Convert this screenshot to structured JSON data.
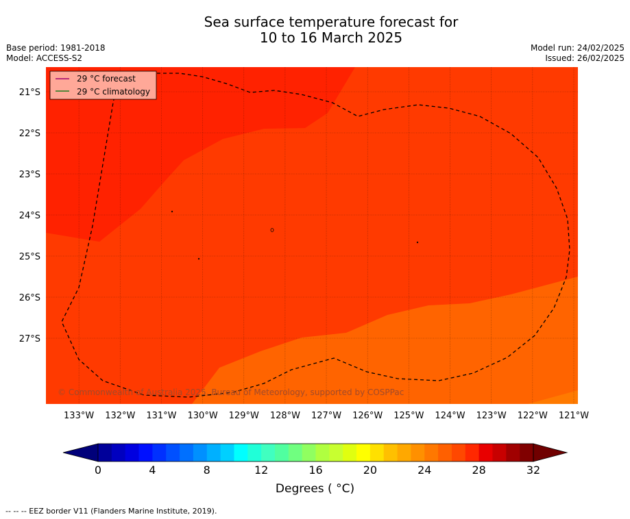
{
  "title_line1": "Sea surface temperature forecast for",
  "title_line2": "10 to 16 March 2025",
  "meta_left": [
    "Base period: 1981-2018",
    "Model: ACCESS-S2"
  ],
  "meta_right": [
    "Model run: 24/02/2025",
    "Issued: 26/02/2025"
  ],
  "legend": {
    "forecast_label": "29 °C  forecast",
    "climatology_label": "29 °C  climatology",
    "forecast_color": "#a0006c",
    "climatology_color": "#1a7a1a",
    "background": "#ffa898"
  },
  "map": {
    "lat_labels": [
      "21°S",
      "22°S",
      "23°S",
      "24°S",
      "25°S",
      "26°S",
      "27°S"
    ],
    "lon_labels": [
      "133°W",
      "132°W",
      "131°W",
      "130°W",
      "129°W",
      "128°W",
      "127°W",
      "126°W",
      "125°W",
      "124°W",
      "123°W",
      "122°W",
      "121°W"
    ],
    "lat_range": [
      -28.6,
      -20.4
    ],
    "lon_range": [
      -133.8,
      -120.9
    ],
    "region_colors": {
      "warm_29_30": "#ff2200",
      "mid_28_29": "#ff3a00",
      "cool_27_28": "#ff6400",
      "cool_26_27": "#ff7a00"
    },
    "copyright": "© Commonwealth of Australia 2025, Bureau of Meteorology, supported by COSPPac"
  },
  "colorbar": {
    "tick_labels": [
      "0",
      "4",
      "8",
      "12",
      "16",
      "20",
      "24",
      "28",
      "32"
    ],
    "min": 0,
    "max": 34,
    "step": 1,
    "colors": [
      "#00007a",
      "#00009a",
      "#0000c0",
      "#0000e0",
      "#0010ff",
      "#0030ff",
      "#0050ff",
      "#0070ff",
      "#0090ff",
      "#00b0ff",
      "#00d0ff",
      "#00ffff",
      "#20ffd8",
      "#40ffc0",
      "#50ffa0",
      "#70ff80",
      "#90ff60",
      "#b0ff40",
      "#c8ff30",
      "#e0ff10",
      "#ffff00",
      "#ffe000",
      "#ffc000",
      "#ffa800",
      "#ff9000",
      "#ff7800",
      "#ff6000",
      "#ff4800",
      "#ff2800",
      "#e80000",
      "#c80000",
      "#a00000",
      "#800000",
      "#700000"
    ],
    "label": "Degrees ( °C)"
  },
  "footer": "--  --  -- EEZ border V11 (Flanders Marine Institute, 2019)."
}
